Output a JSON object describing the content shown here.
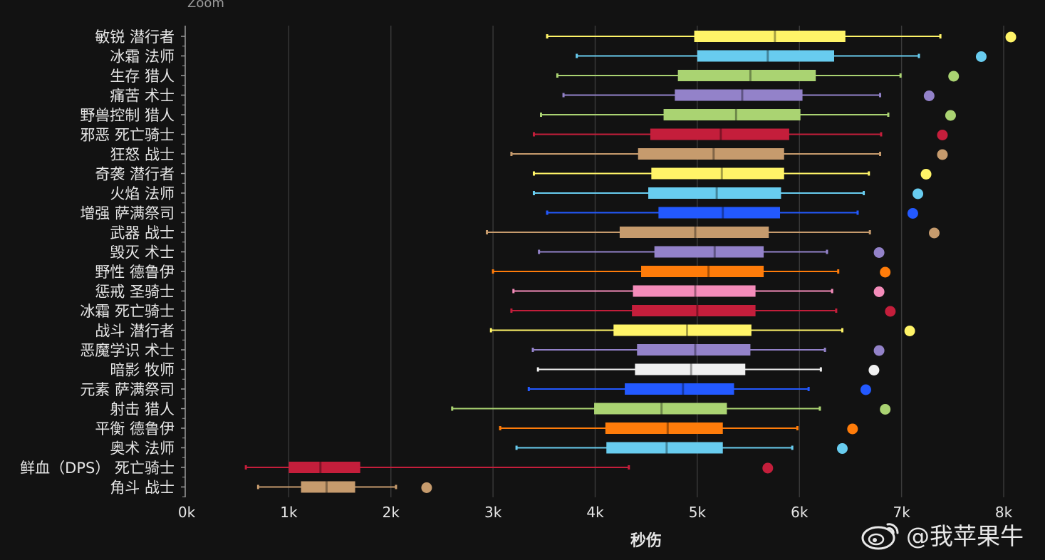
{
  "zoom_label": "Zoom",
  "watermark": {
    "text": "@我苹果牛",
    "icon": "weibo-icon"
  },
  "colors": {
    "background": "#121212",
    "grid": "#3a3a3a",
    "axis": "#9a9a9a",
    "text": "#e6e6e6"
  },
  "chart_data": {
    "type": "boxplot",
    "title": "",
    "xlabel": "秒伤",
    "ylabel": "",
    "xlim": [
      0,
      8000
    ],
    "grid": "vertical",
    "xticks": [
      0,
      1000,
      2000,
      3000,
      4000,
      5000,
      6000,
      7000,
      8000
    ],
    "xtick_labels": [
      "0k",
      "1k",
      "2k",
      "3k",
      "4k",
      "5k",
      "6k",
      "7k",
      "8k"
    ],
    "series": [
      {
        "label": "敏锐 潜行者",
        "color": "#fff468",
        "min": 3530,
        "q1": 4970,
        "median": 5760,
        "q3": 6450,
        "max": 7380,
        "outlier": 8070
      },
      {
        "label": "冰霜 法师",
        "color": "#68ccef",
        "min": 3820,
        "q1": 5000,
        "median": 5690,
        "q3": 6340,
        "max": 7170,
        "outlier": 7780
      },
      {
        "label": "生存 猎人",
        "color": "#aad372",
        "min": 3630,
        "q1": 4810,
        "median": 5520,
        "q3": 6160,
        "max": 6990,
        "outlier": 7510
      },
      {
        "label": "痛苦 术士",
        "color": "#9382c9",
        "min": 3690,
        "q1": 4780,
        "median": 5440,
        "q3": 6030,
        "max": 6790,
        "outlier": 7270
      },
      {
        "label": "野兽控制 猎人",
        "color": "#aad372",
        "min": 3470,
        "q1": 4670,
        "median": 5380,
        "q3": 6010,
        "max": 6870,
        "outlier": 7480
      },
      {
        "label": "邪恶 死亡骑士",
        "color": "#c41e3b",
        "min": 3400,
        "q1": 4540,
        "median": 5230,
        "q3": 5900,
        "max": 6800,
        "outlier": 7400
      },
      {
        "label": "狂怒 战士",
        "color": "#c69b6d",
        "min": 3180,
        "q1": 4420,
        "median": 5160,
        "q3": 5850,
        "max": 6790,
        "outlier": 7400
      },
      {
        "label": "奇袭 潜行者",
        "color": "#fff468",
        "min": 3400,
        "q1": 4550,
        "median": 5240,
        "q3": 5850,
        "max": 6680,
        "outlier": 7240
      },
      {
        "label": "火焰 法师",
        "color": "#68ccef",
        "min": 3400,
        "q1": 4520,
        "median": 5190,
        "q3": 5820,
        "max": 6630,
        "outlier": 7160
      },
      {
        "label": "增强 萨满祭司",
        "color": "#2359ff",
        "min": 3530,
        "q1": 4620,
        "median": 5250,
        "q3": 5810,
        "max": 6570,
        "outlier": 7110
      },
      {
        "label": "武器 战士",
        "color": "#c69b6d",
        "min": 2940,
        "q1": 4240,
        "median": 4980,
        "q3": 5700,
        "max": 6690,
        "outlier": 7320
      },
      {
        "label": "毁灭 术士",
        "color": "#9382c9",
        "min": 3450,
        "q1": 4580,
        "median": 5170,
        "q3": 5650,
        "max": 6270,
        "outlier": 6780
      },
      {
        "label": "野性 德鲁伊",
        "color": "#ff7c0a",
        "min": 3000,
        "q1": 4450,
        "median": 5110,
        "q3": 5650,
        "max": 6380,
        "outlier": 6840
      },
      {
        "label": "惩戒 圣骑士",
        "color": "#f48cba",
        "min": 3200,
        "q1": 4370,
        "median": 4980,
        "q3": 5570,
        "max": 6320,
        "outlier": 6780
      },
      {
        "label": "冰霜 死亡骑士",
        "color": "#c41e3b",
        "min": 3180,
        "q1": 4360,
        "median": 5000,
        "q3": 5570,
        "max": 6360,
        "outlier": 6890
      },
      {
        "label": "战斗 潜行者",
        "color": "#fff468",
        "min": 2980,
        "q1": 4180,
        "median": 4900,
        "q3": 5530,
        "max": 6420,
        "outlier": 7080
      },
      {
        "label": "恶魔学识 术士",
        "color": "#9382c9",
        "min": 3390,
        "q1": 4410,
        "median": 4980,
        "q3": 5520,
        "max": 6250,
        "outlier": 6780
      },
      {
        "label": "暗影 牧师",
        "color": "#f0f0f0",
        "min": 3440,
        "q1": 4390,
        "median": 4940,
        "q3": 5470,
        "max": 6210,
        "outlier": 6730
      },
      {
        "label": "元素 萨满祭司",
        "color": "#2359ff",
        "min": 3350,
        "q1": 4290,
        "median": 4860,
        "q3": 5360,
        "max": 6090,
        "outlier": 6650
      },
      {
        "label": "射击 猎人",
        "color": "#aad372",
        "min": 2600,
        "q1": 3990,
        "median": 4650,
        "q3": 5290,
        "max": 6200,
        "outlier": 6840
      },
      {
        "label": "平衡 德鲁伊",
        "color": "#ff7c0a",
        "min": 3070,
        "q1": 4100,
        "median": 4710,
        "q3": 5250,
        "max": 5980,
        "outlier": 6520
      },
      {
        "label": "奥术 法师",
        "color": "#68ccef",
        "min": 3230,
        "q1": 4110,
        "median": 4700,
        "q3": 5250,
        "max": 5930,
        "outlier": 6420
      },
      {
        "label": "鲜血（DPS） 死亡骑士",
        "color": "#c41e3b",
        "min": 580,
        "q1": 1000,
        "median": 1310,
        "q3": 1700,
        "max": 4330,
        "outlier": 5690
      },
      {
        "label": "角斗 战士",
        "color": "#c69b6d",
        "min": 700,
        "q1": 1120,
        "median": 1370,
        "q3": 1650,
        "max": 2050,
        "outlier": 2350
      }
    ]
  }
}
